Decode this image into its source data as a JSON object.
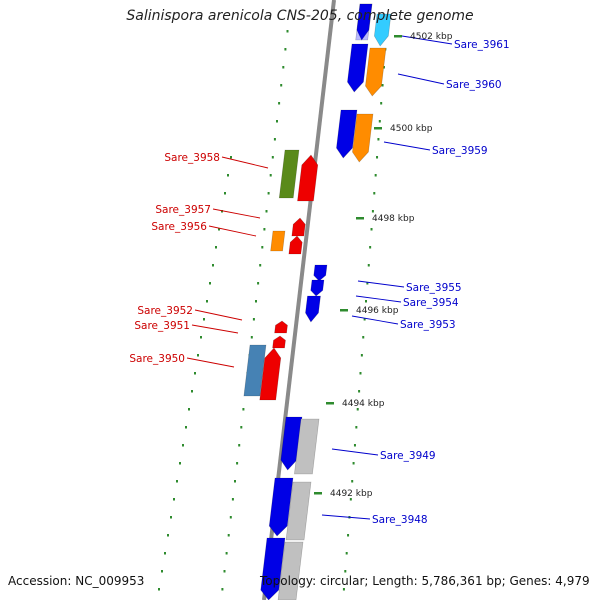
{
  "title": "Salinispora arenicola CNS-205, complete genome",
  "accession": "Accession: NC_009953",
  "topology": "Topology: circular; Length: 5,786,361 bp; Genes: 4,979",
  "colors": {
    "backbone": "#888888",
    "tick": "#2e8b2e",
    "label_forward": "#0000cc",
    "label_reverse": "#cc0000",
    "gene_blue": "#0000e6",
    "gene_orange": "#ff8c00",
    "gene_red": "#ee0000",
    "gene_green": "#5a8a1a",
    "gene_lightblue": "#4682b4",
    "gene_gray": "#c0c0c0",
    "gene_cyan": "#33ccff",
    "gene_lavender": "#b8b8ff"
  },
  "scale_labels": [
    "4502 kbp",
    "4500 kbp",
    "4498 kbp",
    "4496 kbp",
    "4494 kbp",
    "4492 kbp"
  ],
  "genes_forward": [
    "Sare_3961",
    "Sare_3960",
    "Sare_3959",
    "Sare_3955",
    "Sare_3954",
    "Sare_3953",
    "Sare_3949",
    "Sare_3948"
  ],
  "genes_reverse": [
    "Sare_3958",
    "Sare_3957",
    "Sare_3956",
    "Sare_3952",
    "Sare_3951",
    "Sare_3950"
  ]
}
